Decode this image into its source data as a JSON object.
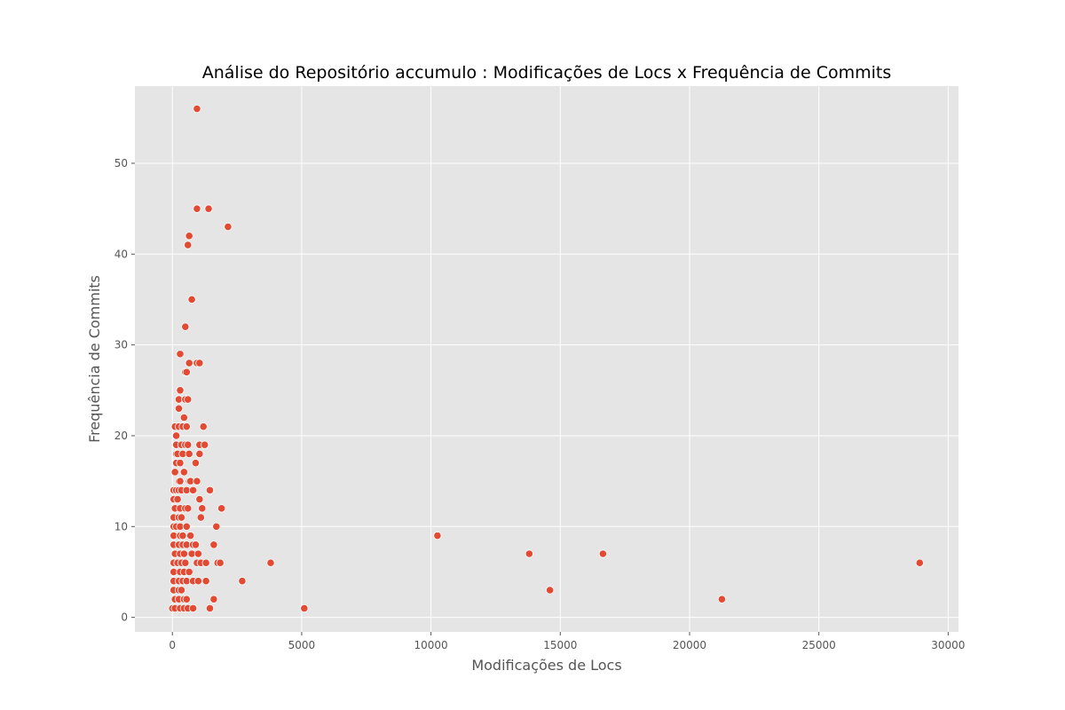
{
  "chart_data": {
    "type": "scatter",
    "title": "Análise do Repositório accumulo : Modificações de Locs x Frequência de Commits",
    "xlabel": "Modificações de Locs",
    "ylabel": "Frequência de Commits",
    "xlim": [
      -1450,
      30400
    ],
    "ylim": [
      -1.6,
      58.5
    ],
    "xticks": [
      0,
      5000,
      10000,
      15000,
      20000,
      25000,
      30000
    ],
    "xtick_labels": [
      "0",
      "5000",
      "10000",
      "15000",
      "20000",
      "25000",
      "30000"
    ],
    "yticks": [
      0,
      10,
      20,
      30,
      40,
      50
    ],
    "ytick_labels": [
      "0",
      "10",
      "20",
      "30",
      "40",
      "50"
    ],
    "grid": true,
    "style": "ggplot",
    "colors": {
      "background": "#e5e5e5",
      "grid": "#ffffff",
      "marker": "#e24a33",
      "marker_edge": "#ffffff"
    },
    "points": [
      [
        950,
        56
      ],
      [
        950,
        45
      ],
      [
        1400,
        45
      ],
      [
        2150,
        43
      ],
      [
        650,
        42
      ],
      [
        600,
        41
      ],
      [
        750,
        35
      ],
      [
        500,
        32
      ],
      [
        300,
        29
      ],
      [
        650,
        28
      ],
      [
        950,
        28
      ],
      [
        1050,
        28
      ],
      [
        500,
        27
      ],
      [
        550,
        27
      ],
      [
        300,
        25
      ],
      [
        250,
        24
      ],
      [
        500,
        24
      ],
      [
        600,
        24
      ],
      [
        250,
        23
      ],
      [
        450,
        22
      ],
      [
        100,
        21
      ],
      [
        250,
        21
      ],
      [
        400,
        21
      ],
      [
        550,
        21
      ],
      [
        1200,
        21
      ],
      [
        150,
        20
      ],
      [
        150,
        19
      ],
      [
        350,
        19
      ],
      [
        500,
        19
      ],
      [
        600,
        19
      ],
      [
        1050,
        19
      ],
      [
        1250,
        19
      ],
      [
        150,
        18
      ],
      [
        200,
        18
      ],
      [
        400,
        18
      ],
      [
        650,
        18
      ],
      [
        1050,
        18
      ],
      [
        150,
        17
      ],
      [
        300,
        17
      ],
      [
        900,
        17
      ],
      [
        100,
        16
      ],
      [
        450,
        16
      ],
      [
        250,
        15
      ],
      [
        300,
        15
      ],
      [
        650,
        15
      ],
      [
        700,
        15
      ],
      [
        950,
        15
      ],
      [
        50,
        14
      ],
      [
        150,
        14
      ],
      [
        250,
        14
      ],
      [
        350,
        14
      ],
      [
        550,
        14
      ],
      [
        800,
        14
      ],
      [
        1450,
        14
      ],
      [
        50,
        13
      ],
      [
        200,
        13
      ],
      [
        1050,
        13
      ],
      [
        100,
        12
      ],
      [
        300,
        12
      ],
      [
        500,
        12
      ],
      [
        600,
        12
      ],
      [
        1150,
        12
      ],
      [
        1900,
        12
      ],
      [
        50,
        11
      ],
      [
        250,
        11
      ],
      [
        350,
        11
      ],
      [
        1100,
        11
      ],
      [
        50,
        10
      ],
      [
        150,
        10
      ],
      [
        300,
        10
      ],
      [
        550,
        10
      ],
      [
        1700,
        10
      ],
      [
        50,
        9
      ],
      [
        300,
        9
      ],
      [
        400,
        9
      ],
      [
        700,
        9
      ],
      [
        10250,
        9
      ],
      [
        50,
        8
      ],
      [
        250,
        8
      ],
      [
        400,
        8
      ],
      [
        550,
        8
      ],
      [
        800,
        8
      ],
      [
        900,
        8
      ],
      [
        1600,
        8
      ],
      [
        100,
        7
      ],
      [
        300,
        7
      ],
      [
        450,
        7
      ],
      [
        750,
        7
      ],
      [
        1000,
        7
      ],
      [
        13800,
        7
      ],
      [
        16650,
        7
      ],
      [
        50,
        6
      ],
      [
        200,
        6
      ],
      [
        350,
        6
      ],
      [
        500,
        6
      ],
      [
        950,
        6
      ],
      [
        1100,
        6
      ],
      [
        1300,
        6
      ],
      [
        1750,
        6
      ],
      [
        1850,
        6
      ],
      [
        3800,
        6
      ],
      [
        28900,
        6
      ],
      [
        50,
        5
      ],
      [
        300,
        5
      ],
      [
        450,
        5
      ],
      [
        650,
        5
      ],
      [
        50,
        4
      ],
      [
        250,
        4
      ],
      [
        400,
        4
      ],
      [
        550,
        4
      ],
      [
        800,
        4
      ],
      [
        1000,
        4
      ],
      [
        1300,
        4
      ],
      [
        2700,
        4
      ],
      [
        50,
        3
      ],
      [
        250,
        3
      ],
      [
        350,
        3
      ],
      [
        14600,
        3
      ],
      [
        100,
        2
      ],
      [
        250,
        2
      ],
      [
        450,
        2
      ],
      [
        550,
        2
      ],
      [
        1600,
        2
      ],
      [
        21250,
        2
      ],
      [
        0,
        1
      ],
      [
        100,
        1
      ],
      [
        300,
        1
      ],
      [
        450,
        1
      ],
      [
        600,
        1
      ],
      [
        800,
        1
      ],
      [
        1450,
        1
      ],
      [
        5100,
        1
      ]
    ]
  }
}
